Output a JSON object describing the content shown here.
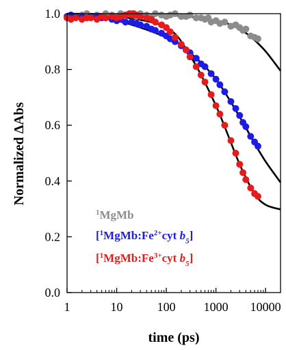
{
  "chart_data": {
    "type": "scatter",
    "xlabel": "time (ps)",
    "ylabel": "Normalized ΔAbs",
    "xscale": "log",
    "xlim": [
      1,
      20000
    ],
    "ylim": [
      0.0,
      1.0
    ],
    "x_ticks": [
      1,
      10,
      100,
      1000,
      10000
    ],
    "x_tick_labels": [
      "1",
      "10",
      "100",
      "1000",
      "10000"
    ],
    "y_ticks": [
      0.0,
      0.2,
      0.4,
      0.6,
      0.8,
      1.0
    ],
    "y_tick_labels": [
      "0.0",
      "0.2",
      "0.4",
      "0.6",
      "0.8",
      "1.0"
    ],
    "grid": false,
    "legend_placement": "lower-left",
    "series": [
      {
        "name": "1MgMb",
        "legend_parts": {
          "pre": "",
          "sup": "1",
          "mid": "MgMb",
          "sup2": "",
          "after": "",
          "italic": "",
          "sub": "",
          "post": ""
        },
        "color": "#8c8c8c",
        "points": [
          [
            1.0,
            0.99
          ],
          [
            1.2,
            0.995
          ],
          [
            1.5,
            0.99
          ],
          [
            2,
            0.995
          ],
          [
            2.5,
            1.0
          ],
          [
            3,
            0.99
          ],
          [
            4,
            0.995
          ],
          [
            5,
            0.99
          ],
          [
            6,
            1.0
          ],
          [
            8,
            0.995
          ],
          [
            10,
            0.99
          ],
          [
            12,
            1.0
          ],
          [
            15,
            0.995
          ],
          [
            20,
            1.0
          ],
          [
            25,
            0.99
          ],
          [
            30,
            1.0
          ],
          [
            40,
            0.995
          ],
          [
            50,
            0.99
          ],
          [
            60,
            1.0
          ],
          [
            80,
            0.995
          ],
          [
            100,
            0.99
          ],
          [
            120,
            0.995
          ],
          [
            150,
            1.0
          ],
          [
            200,
            0.99
          ],
          [
            250,
            0.99
          ],
          [
            300,
            0.995
          ],
          [
            400,
            0.985
          ],
          [
            500,
            0.985
          ],
          [
            600,
            0.98
          ],
          [
            700,
            0.985
          ],
          [
            800,
            0.97
          ],
          [
            1000,
            0.975
          ],
          [
            1200,
            0.965
          ],
          [
            1500,
            0.97
          ],
          [
            2000,
            0.955
          ],
          [
            2500,
            0.96
          ],
          [
            3000,
            0.95
          ],
          [
            3500,
            0.94
          ],
          [
            4000,
            0.945
          ],
          [
            5000,
            0.92
          ],
          [
            6000,
            0.915
          ],
          [
            7000,
            0.91
          ]
        ],
        "fit": [
          [
            1,
            1.0
          ],
          [
            100,
            0.995
          ],
          [
            1000,
            0.975
          ],
          [
            3000,
            0.945
          ],
          [
            6000,
            0.905
          ],
          [
            10000,
            0.865
          ],
          [
            15000,
            0.825
          ],
          [
            20000,
            0.795
          ]
        ]
      },
      {
        "name": "[1MgMb:Fe2+cyt b5]",
        "legend_parts": {
          "pre": "[",
          "sup": "1",
          "mid": "MgMb:Fe",
          "sup2": "2+",
          "after": "cyt ",
          "italic": "b",
          "sub": "5",
          "post": "]"
        },
        "color": "#1c1ce6",
        "points": [
          [
            1.0,
            0.99
          ],
          [
            1.2,
            0.995
          ],
          [
            1.5,
            0.99
          ],
          [
            2,
            0.99
          ],
          [
            2.5,
            0.985
          ],
          [
            3,
            0.99
          ],
          [
            4,
            0.99
          ],
          [
            5,
            0.985
          ],
          [
            6,
            0.985
          ],
          [
            8,
            0.98
          ],
          [
            10,
            0.975
          ],
          [
            12,
            0.98
          ],
          [
            15,
            0.97
          ],
          [
            20,
            0.97
          ],
          [
            25,
            0.965
          ],
          [
            30,
            0.96
          ],
          [
            40,
            0.955
          ],
          [
            50,
            0.945
          ],
          [
            60,
            0.94
          ],
          [
            80,
            0.93
          ],
          [
            100,
            0.92
          ],
          [
            120,
            0.91
          ],
          [
            150,
            0.9
          ],
          [
            200,
            0.885
          ],
          [
            250,
            0.87
          ],
          [
            300,
            0.86
          ],
          [
            400,
            0.84
          ],
          [
            500,
            0.82
          ],
          [
            600,
            0.81
          ],
          [
            800,
            0.785
          ],
          [
            1000,
            0.765
          ],
          [
            1200,
            0.745
          ],
          [
            1500,
            0.72
          ],
          [
            2000,
            0.685
          ],
          [
            2500,
            0.66
          ],
          [
            3000,
            0.635
          ],
          [
            3500,
            0.61
          ],
          [
            4000,
            0.595
          ],
          [
            5000,
            0.56
          ],
          [
            6000,
            0.54
          ],
          [
            7000,
            0.525
          ]
        ],
        "fit": [
          [
            1,
            1.0
          ],
          [
            10,
            0.975
          ],
          [
            100,
            0.915
          ],
          [
            300,
            0.86
          ],
          [
            1000,
            0.765
          ],
          [
            3000,
            0.63
          ],
          [
            6000,
            0.535
          ],
          [
            10000,
            0.47
          ],
          [
            20000,
            0.395
          ]
        ]
      },
      {
        "name": "[1MgMb:Fe3+cyt b5]",
        "legend_parts": {
          "pre": "[",
          "sup": "1",
          "mid": "MgMb:Fe",
          "sup2": "3+",
          "after": "cyt ",
          "italic": "b",
          "sub": "5",
          "post": "]"
        },
        "color": "#e61c1c",
        "points": [
          [
            1.0,
            0.985
          ],
          [
            1.2,
            0.98
          ],
          [
            1.5,
            0.985
          ],
          [
            2,
            0.98
          ],
          [
            2.5,
            0.985
          ],
          [
            3,
            0.985
          ],
          [
            4,
            0.98
          ],
          [
            5,
            0.99
          ],
          [
            6,
            0.985
          ],
          [
            8,
            0.99
          ],
          [
            10,
            0.985
          ],
          [
            12,
            0.99
          ],
          [
            15,
            0.995
          ],
          [
            18,
            1.0
          ],
          [
            20,
            0.995
          ],
          [
            22,
            1.0
          ],
          [
            25,
            0.995
          ],
          [
            30,
            0.99
          ],
          [
            40,
            0.985
          ],
          [
            50,
            0.98
          ],
          [
            60,
            0.97
          ],
          [
            80,
            0.96
          ],
          [
            100,
            0.95
          ],
          [
            120,
            0.935
          ],
          [
            150,
            0.915
          ],
          [
            200,
            0.89
          ],
          [
            250,
            0.87
          ],
          [
            300,
            0.845
          ],
          [
            400,
            0.81
          ],
          [
            500,
            0.78
          ],
          [
            600,
            0.755
          ],
          [
            800,
            0.71
          ],
          [
            1000,
            0.67
          ],
          [
            1200,
            0.64
          ],
          [
            1500,
            0.6
          ],
          [
            2000,
            0.545
          ],
          [
            2500,
            0.5
          ],
          [
            3000,
            0.46
          ],
          [
            3500,
            0.43
          ],
          [
            4000,
            0.405
          ],
          [
            5000,
            0.375
          ],
          [
            6000,
            0.355
          ],
          [
            7000,
            0.345
          ]
        ],
        "fit": [
          [
            1,
            0.995
          ],
          [
            10,
            0.99
          ],
          [
            100,
            0.95
          ],
          [
            300,
            0.85
          ],
          [
            1000,
            0.67
          ],
          [
            3000,
            0.46
          ],
          [
            6000,
            0.355
          ],
          [
            10000,
            0.315
          ],
          [
            20000,
            0.298
          ]
        ]
      }
    ]
  }
}
